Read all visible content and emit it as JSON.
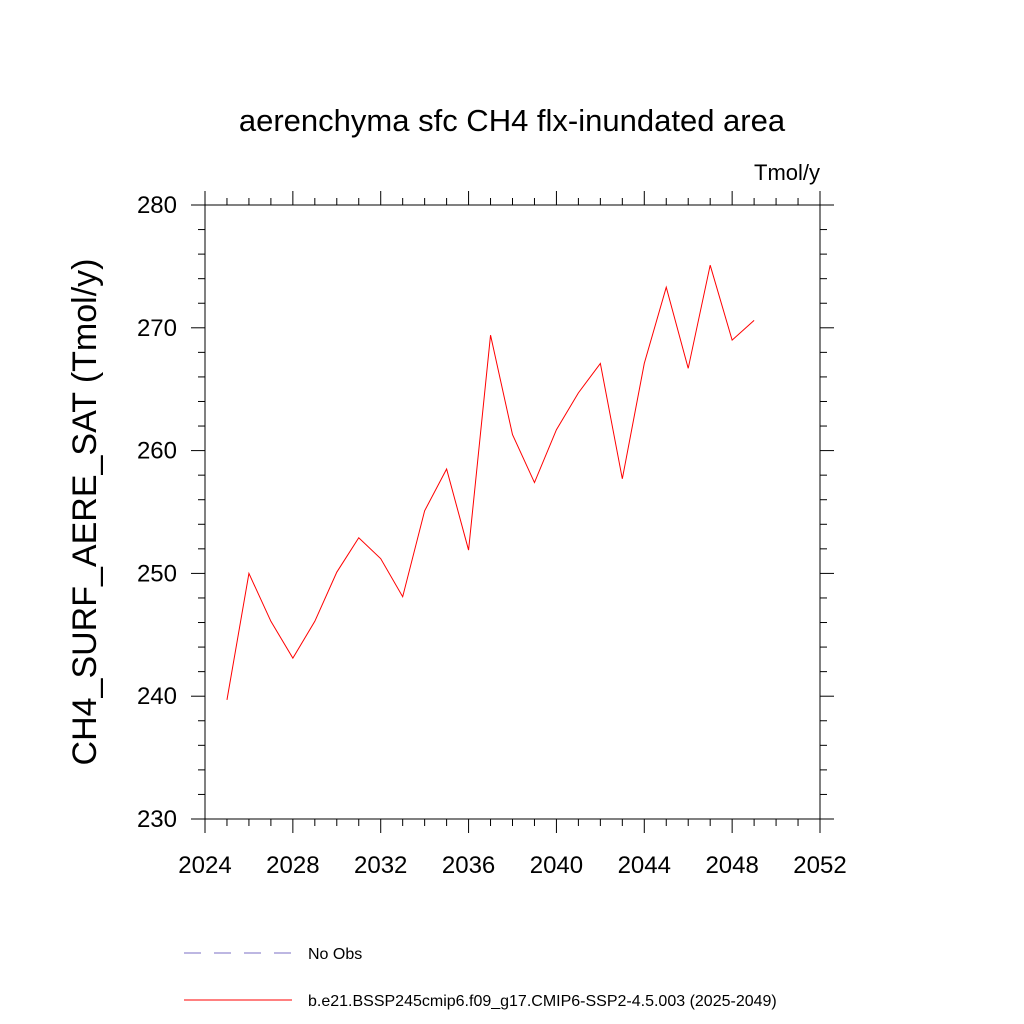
{
  "chart_data": {
    "type": "line",
    "title": "aerenchyma sfc CH4 flx-inundated area",
    "units": "Tmol/y",
    "ylabel": "CH4_SURF_AERE_SAT  (Tmol/y)",
    "xlabel": "",
    "xlim": [
      2024,
      2052
    ],
    "ylim": [
      230,
      280
    ],
    "xticks": [
      2024,
      2028,
      2032,
      2036,
      2040,
      2044,
      2048,
      2052
    ],
    "yticks": [
      230,
      240,
      250,
      260,
      270,
      280
    ],
    "x": [
      2025,
      2026,
      2027,
      2028,
      2029,
      2030,
      2031,
      2032,
      2033,
      2034,
      2035,
      2036,
      2037,
      2038,
      2039,
      2040,
      2041,
      2042,
      2043,
      2044,
      2045,
      2046,
      2047,
      2048,
      2049
    ],
    "series": [
      {
        "name": "b.e21.BSSP245cmip6.f09_g17.CMIP6-SSP2-4.5.003 (2025-2049)",
        "color": "#ff0000",
        "style": "solid",
        "values": [
          239.7,
          250.0,
          246.1,
          243.1,
          246.1,
          250.1,
          252.9,
          251.2,
          248.1,
          255.1,
          258.5,
          251.9,
          269.4,
          261.3,
          257.4,
          261.7,
          264.7,
          267.1,
          257.7,
          267.1,
          273.3,
          266.7,
          275.1,
          269.0,
          270.6
        ]
      }
    ],
    "legend": [
      {
        "label": "No Obs",
        "color": "#7b6fc6",
        "style": "dashed"
      },
      {
        "label": "b.e21.BSSP245cmip6.f09_g17.CMIP6-SSP2-4.5.003 (2025-2049)",
        "color": "#ff0000",
        "style": "solid"
      }
    ],
    "legend_position": "bottom",
    "grid": false
  }
}
